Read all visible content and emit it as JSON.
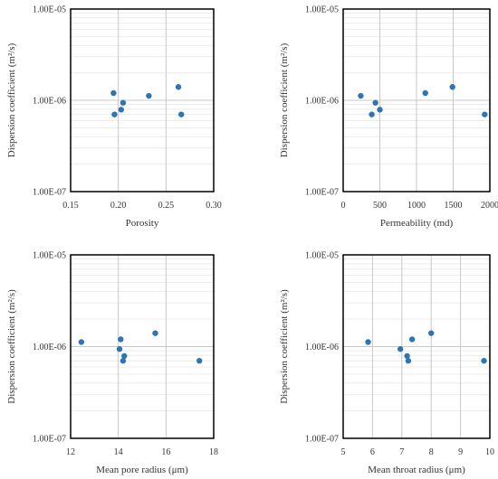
{
  "colors": {
    "marker": "#2e75b6",
    "grid_major": "#c8c8c8",
    "grid_minor": "#ececec",
    "frame": "#000000",
    "text": "#333333"
  },
  "chart_data": [
    {
      "type": "scatter",
      "title": "",
      "xlabel": "Porosity",
      "ylabel": "Dispersion coefficient (m²/s)",
      "xlim": [
        0.15,
        0.3
      ],
      "xticks": [
        0.15,
        0.2,
        0.25,
        0.3
      ],
      "xtick_labels": [
        "0.15",
        "0.20",
        "0.25",
        "0.30"
      ],
      "ylim": [
        1e-07,
        1e-05
      ],
      "y_scale": "log",
      "yticks": [
        1e-07,
        1e-06,
        1e-05
      ],
      "ytick_labels": [
        "1.00E-07",
        "1.00E-06",
        "1.00E-05"
      ],
      "grid": true,
      "x": [
        0.195,
        0.196,
        0.203,
        0.205,
        0.232,
        0.263,
        0.266
      ],
      "y": [
        1.2e-06,
        7e-07,
        7.9e-07,
        9.4e-07,
        1.12e-06,
        1.4e-06,
        7e-07
      ]
    },
    {
      "type": "scatter",
      "title": "",
      "xlabel": "Permeability (md)",
      "ylabel": "Dispersion coefficient (m²/s)",
      "xlim": [
        0,
        2000
      ],
      "xticks": [
        0,
        500,
        1000,
        1500,
        2000
      ],
      "xtick_labels": [
        "0",
        "500",
        "1000",
        "1500",
        "2000"
      ],
      "ylim": [
        1e-07,
        1e-05
      ],
      "y_scale": "log",
      "yticks": [
        1e-07,
        1e-06,
        1e-05
      ],
      "ytick_labels": [
        "1.00E-07",
        "1.00E-06",
        "1.00E-05"
      ],
      "grid": true,
      "x": [
        240,
        390,
        440,
        500,
        1120,
        1490,
        1930
      ],
      "y": [
        1.12e-06,
        7e-07,
        9.4e-07,
        7.9e-07,
        1.2e-06,
        1.4e-06,
        7e-07
      ]
    },
    {
      "type": "scatter",
      "title": "",
      "xlabel": "Mean pore radius (μm)",
      "ylabel": "Dispersion coefficient (m²/s)",
      "xlim": [
        12,
        18
      ],
      "xticks": [
        12,
        14,
        16,
        18
      ],
      "xtick_labels": [
        "12",
        "14",
        "16",
        "18"
      ],
      "ylim": [
        1e-07,
        1e-05
      ],
      "y_scale": "log",
      "yticks": [
        1e-07,
        1e-06,
        1e-05
      ],
      "ytick_labels": [
        "1.00E-07",
        "1.00E-06",
        "1.00E-05"
      ],
      "grid": true,
      "x": [
        12.45,
        14.05,
        14.1,
        14.2,
        14.25,
        15.55,
        17.4
      ],
      "y": [
        1.12e-06,
        9.4e-07,
        1.2e-06,
        7e-07,
        7.9e-07,
        1.4e-06,
        7e-07
      ]
    },
    {
      "type": "scatter",
      "title": "",
      "xlabel": "Mean throat radius (μm)",
      "ylabel": "Dispersion coefficient (m²/s)",
      "xlim": [
        5,
        10
      ],
      "xticks": [
        5,
        6,
        7,
        8,
        9,
        10
      ],
      "xtick_labels": [
        "5",
        "6",
        "7",
        "8",
        "9",
        "10"
      ],
      "ylim": [
        1e-07,
        1e-05
      ],
      "y_scale": "log",
      "yticks": [
        1e-07,
        1e-06,
        1e-05
      ],
      "ytick_labels": [
        "1.00E-07",
        "1.00E-06",
        "1.00E-05"
      ],
      "grid": true,
      "x": [
        5.85,
        6.95,
        7.18,
        7.22,
        7.35,
        8.0,
        9.8
      ],
      "y": [
        1.12e-06,
        9.4e-07,
        7.9e-07,
        7e-07,
        1.2e-06,
        1.4e-06,
        7e-07
      ]
    }
  ]
}
